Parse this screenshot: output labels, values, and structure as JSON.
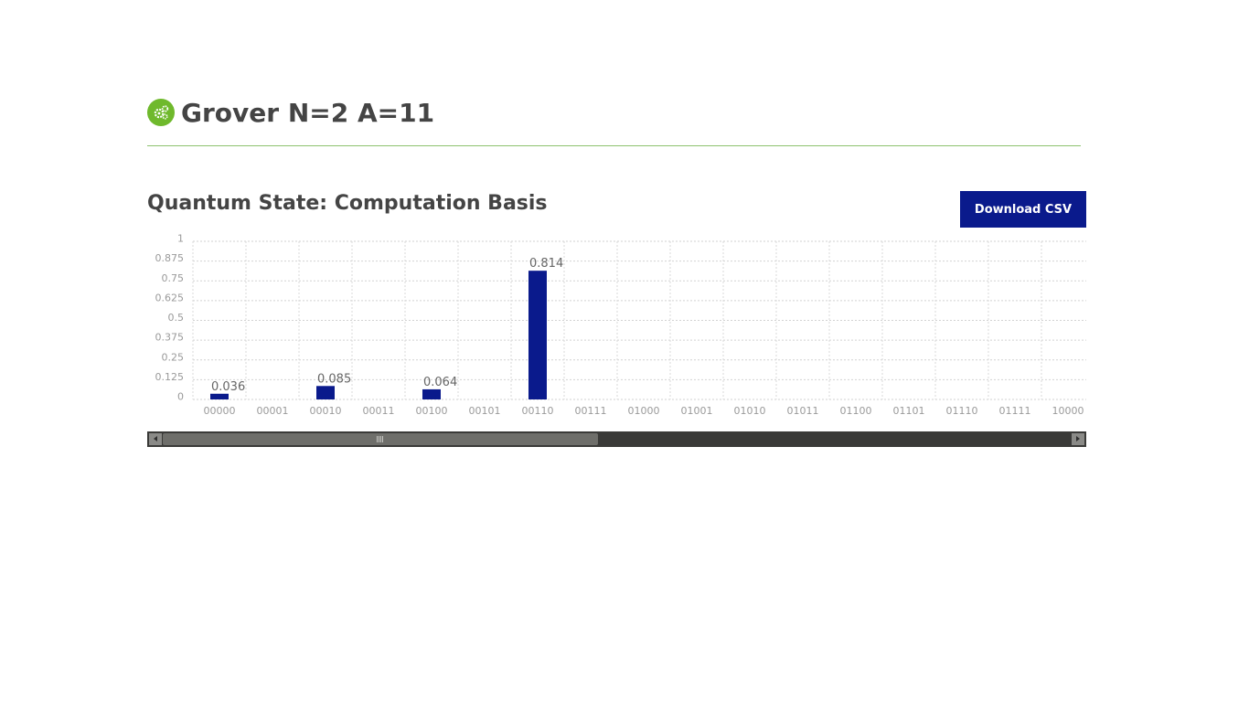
{
  "header": {
    "title": "Grover N=2 A=11",
    "logo_icon": "gears-icon"
  },
  "section": {
    "title": "Quantum State: Computation Basis"
  },
  "toolbar": {
    "download_label": "Download CSV"
  },
  "colors": {
    "bar": "#0a1a8c",
    "accent": "#6fb92c",
    "button": "#0a1a8c"
  },
  "chart_data": {
    "type": "bar",
    "title": "",
    "xlabel": "",
    "ylabel": "",
    "categories": [
      "00000",
      "00001",
      "00010",
      "00011",
      "00100",
      "00101",
      "00110",
      "00111",
      "01000",
      "01001",
      "01010",
      "01011",
      "01100",
      "01101",
      "01110",
      "01111",
      "10000"
    ],
    "values": [
      0.036,
      0,
      0.085,
      0,
      0.064,
      0,
      0.814,
      0,
      0,
      0,
      0,
      0,
      0,
      0,
      0,
      0,
      0
    ],
    "data_labels": [
      "0.036",
      "",
      "0.085",
      "",
      "0.064",
      "",
      "0.814",
      "",
      "",
      "",
      "",
      "",
      "",
      "",
      "",
      "",
      ""
    ],
    "y_ticks": [
      "0",
      "0.125",
      "0.25",
      "0.375",
      "0.5",
      "0.625",
      "0.75",
      "0.875",
      "1"
    ],
    "ylim": [
      0,
      1
    ],
    "grid": true,
    "legend": "none"
  }
}
